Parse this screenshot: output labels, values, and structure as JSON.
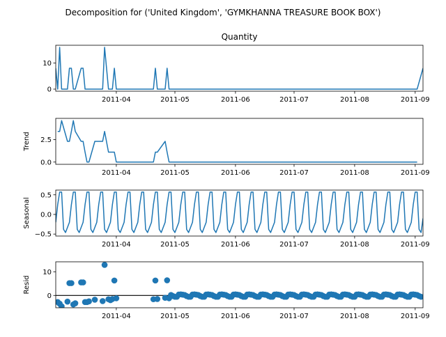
{
  "figure": {
    "suptitle": "Decomposition for ('United Kingdom', 'GYMKHANNA TREASURE BOOK BOX')",
    "date_ticks": [
      "2011-04",
      "2011-05",
      "2011-06",
      "2011-07",
      "2011-08",
      "2011-09"
    ]
  },
  "colors": {
    "series": "#1f77b4",
    "axes": "#000000"
  },
  "chart_data": [
    {
      "type": "line",
      "title": "Quantity",
      "ylabel": "",
      "x_start": "2011-03-01",
      "x_end": "2011-09-05",
      "ylim": [
        -0.8,
        16.8
      ],
      "yticks": [
        0,
        10
      ],
      "ytick_labels": [
        "0",
        "10"
      ],
      "x": [
        "2011-03-01",
        "2011-03-02",
        "2011-03-03",
        "2011-03-04",
        "2011-03-07",
        "2011-03-08",
        "2011-03-09",
        "2011-03-10",
        "2011-03-11",
        "2011-03-14",
        "2011-03-15",
        "2011-03-16",
        "2011-03-17",
        "2011-03-18",
        "2011-03-21",
        "2011-03-25",
        "2011-03-26",
        "2011-03-28",
        "2011-03-29",
        "2011-03-30",
        "2011-03-31",
        "2011-04-01",
        "2011-04-20",
        "2011-04-21",
        "2011-04-22",
        "2011-04-26",
        "2011-04-27",
        "2011-04-28",
        "2011-09-02",
        "2011-09-05"
      ],
      "values": [
        8,
        0,
        16,
        0,
        0,
        8,
        8,
        0,
        0,
        8,
        8,
        0,
        0,
        0,
        0,
        0,
        16,
        0,
        0,
        0,
        8,
        0,
        0,
        8,
        0,
        0,
        8,
        0,
        0,
        8
      ]
    },
    {
      "type": "line",
      "title": "",
      "ylabel": "Trend",
      "x_start": "2011-03-01",
      "x_end": "2011-09-05",
      "ylim": [
        -0.25,
        4.85
      ],
      "yticks": [
        0.0,
        2.5
      ],
      "ytick_labels": [
        "0.0",
        "2.5"
      ],
      "x": [
        "2011-03-02",
        "2011-03-03",
        "2011-03-04",
        "2011-03-07",
        "2011-03-08",
        "2011-03-09",
        "2011-03-10",
        "2011-03-11",
        "2011-03-14",
        "2011-03-15",
        "2011-03-16",
        "2011-03-17",
        "2011-03-18",
        "2011-03-21",
        "2011-03-25",
        "2011-03-26",
        "2011-03-28",
        "2011-03-29",
        "2011-03-30",
        "2011-03-31",
        "2011-04-01",
        "2011-04-20",
        "2011-04-21",
        "2011-04-22",
        "2011-04-26",
        "2011-04-27",
        "2011-04-28",
        "2011-09-02"
      ],
      "values": [
        3.4,
        3.4,
        4.6,
        2.3,
        2.3,
        3.4,
        4.6,
        3.4,
        2.3,
        2.3,
        1.1,
        0,
        0,
        2.3,
        2.3,
        3.4,
        1.1,
        1.1,
        1.1,
        1.1,
        0,
        0,
        1.1,
        1.1,
        2.3,
        1.1,
        0,
        0
      ]
    },
    {
      "type": "line",
      "title": "",
      "ylabel": "Seasonal",
      "x_start": "2011-03-01",
      "x_end": "2011-09-05",
      "ylim": [
        -0.55,
        0.62
      ],
      "yticks": [
        0.5,
        0.0,
        -0.5
      ],
      "ytick_labels": [
        "0.5",
        "0.0",
        "−0.5"
      ],
      "period_days": 7,
      "cycle_values": [
        -0.2,
        0.25,
        0.57,
        0.57,
        -0.38,
        -0.46,
        -0.33
      ],
      "end_value": -0.1
    },
    {
      "type": "scatter",
      "title": "",
      "ylabel": "Resid",
      "x_start": "2011-03-01",
      "x_end": "2011-09-05",
      "ylim": [
        -5.2,
        14.2
      ],
      "yticks": [
        0,
        10
      ],
      "ytick_labels": [
        "0",
        "10"
      ],
      "baseline": 0,
      "x": [
        "2011-03-02",
        "2011-03-03",
        "2011-03-04",
        "2011-03-07",
        "2011-03-08",
        "2011-03-09",
        "2011-03-10",
        "2011-03-11",
        "2011-03-14",
        "2011-03-15",
        "2011-03-16",
        "2011-03-17",
        "2011-03-18",
        "2011-03-21",
        "2011-03-25",
        "2011-03-26",
        "2011-03-28",
        "2011-03-29",
        "2011-03-30",
        "2011-03-31",
        "2011-04-01",
        "2011-04-20",
        "2011-04-21",
        "2011-04-22",
        "2011-04-26",
        "2011-04-27",
        "2011-04-28"
      ],
      "values": [
        -2.8,
        -3.5,
        -4.6,
        -2.6,
        5.2,
        5.2,
        -3.8,
        -3.3,
        5.5,
        5.5,
        -2.8,
        -2.8,
        -2.5,
        -1.8,
        -2.4,
        12.9,
        -1.6,
        -2.0,
        -1.5,
        6.3,
        -1.2,
        -1.6,
        6.3,
        -1.5,
        -1.0,
        6.4,
        -1.2
      ],
      "tail_period_days": 7,
      "tail_cycle_values": [
        0.2,
        -0.25,
        -0.57,
        -0.57,
        0.38,
        0.46,
        0.33
      ]
    }
  ]
}
